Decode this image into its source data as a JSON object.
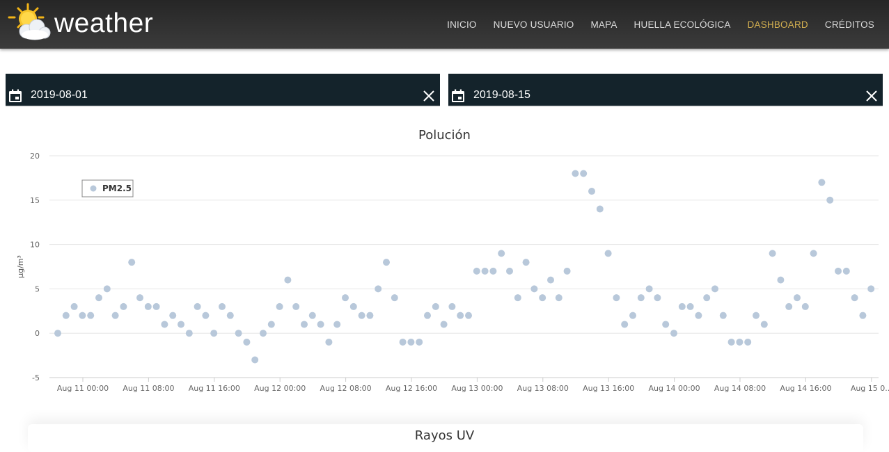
{
  "brand": {
    "name": "weather"
  },
  "nav": {
    "items": [
      {
        "label": "INICIO",
        "active": false
      },
      {
        "label": "NUEVO USUARIO",
        "active": false
      },
      {
        "label": "MAPA",
        "active": false
      },
      {
        "label": "HUELLA ECOLÓGICA",
        "active": false
      },
      {
        "label": "DASHBOARD",
        "active": true
      },
      {
        "label": "CRÉDITOS",
        "active": false
      }
    ]
  },
  "filters": {
    "start_date": "2019-08-01",
    "end_date": "2019-08-15"
  },
  "colors": {
    "navbar": "#2e2e2e",
    "nav_active": "#d4b050",
    "date_box": "#14232b",
    "point": "#b8c8da"
  },
  "pollution_chart": {
    "title": "Polución",
    "chart_data": {
      "type": "scatter",
      "title": "Polución",
      "ylabel": "µg/m³",
      "xlabel": "",
      "ylim": [
        -5,
        20
      ],
      "yticks": [
        -5,
        0,
        5,
        10,
        15,
        20
      ],
      "x_start": "Aug 11 00:00",
      "x_interval_hours": 1,
      "xtick_labels": [
        "Aug 11 00:00",
        "Aug 11 08:00",
        "Aug 11 16:00",
        "Aug 12 00:00",
        "Aug 12 08:00",
        "Aug 12 16:00",
        "Aug 13 00:00",
        "Aug 13 08:00",
        "Aug 13 16:00",
        "Aug 14 00:00",
        "Aug 14 08:00",
        "Aug 14 16:00",
        "Aug 15 0..."
      ],
      "grid": true,
      "legend": {
        "position": "top-left",
        "entries": [
          "PM2.5"
        ]
      },
      "series": [
        {
          "name": "PM2.5",
          "values": [
            0,
            2,
            3,
            2,
            2,
            4,
            5,
            2,
            3,
            8,
            4,
            3,
            3,
            1,
            2,
            1,
            0,
            3,
            2,
            0,
            3,
            2,
            0,
            -1,
            -3,
            0,
            1,
            3,
            6,
            3,
            1,
            2,
            1,
            -1,
            1,
            4,
            3,
            2,
            2,
            5,
            8,
            4,
            -1,
            -1,
            -1,
            2,
            3,
            1,
            3,
            2,
            2,
            7,
            7,
            7,
            9,
            7,
            4,
            8,
            5,
            4,
            6,
            4,
            7,
            18,
            18,
            16,
            14,
            9,
            4,
            1,
            2,
            4,
            5,
            4,
            1,
            0,
            3,
            3,
            2,
            4,
            5,
            2,
            -1,
            -1,
            -1,
            2,
            1,
            9,
            6,
            3,
            4,
            3,
            9,
            17,
            15,
            7,
            7,
            4,
            2,
            5
          ]
        }
      ]
    }
  },
  "uv_chart": {
    "title": "Rayos UV"
  }
}
